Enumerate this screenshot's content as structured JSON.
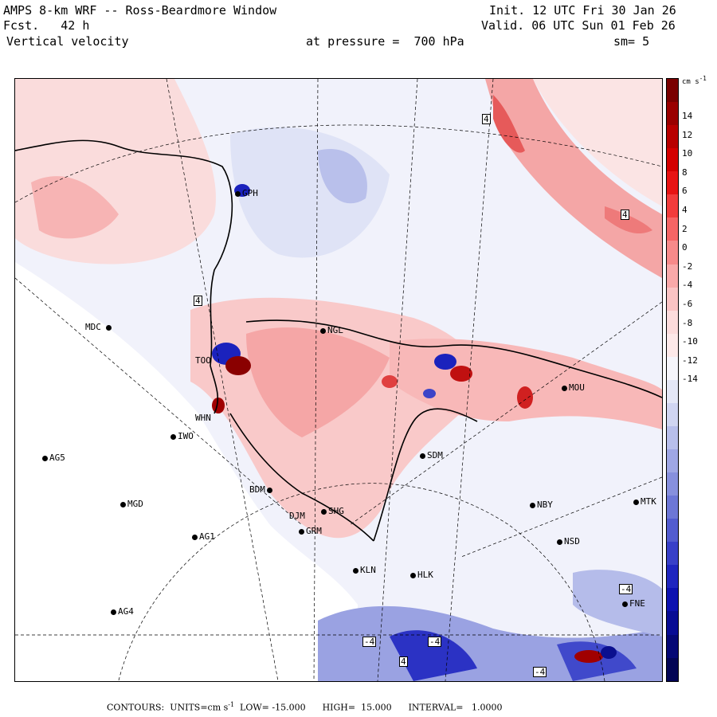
{
  "header": {
    "model": "AMPS 8-km WRF -- Ross-Beardmore Window",
    "forecast": "Fcst.   42 h",
    "variable": "Vertical velocity",
    "level": "at pressure =  700 hPa",
    "init": "Init. 12 UTC Fri 30 Jan 26",
    "valid": "Valid. 06 UTC Sun 01 Feb 26",
    "smoothing": "sm= 5"
  },
  "stations": [
    "GPH",
    "NGL",
    "MDC",
    "TOO",
    "WHN",
    "IWO",
    "AG5",
    "MOU",
    "SDM",
    "BDM",
    "SHG",
    "DJM",
    "GRM",
    "MGD",
    "AG1",
    "NBY",
    "MTK",
    "NSD",
    "KLN",
    "HLK",
    "AG4",
    "FNE"
  ],
  "contour_labels": [
    "4",
    "4",
    "4",
    "-4",
    "-4",
    "-4",
    "4",
    "-4"
  ],
  "colorbar": {
    "unit": "cm s",
    "unit_exp": "-1",
    "ticks": [
      "14",
      "12",
      "10",
      "8",
      "6",
      "4",
      "2",
      "0",
      "-2",
      "-4",
      "-6",
      "-8",
      "-10",
      "-12",
      "-14"
    ],
    "colors": [
      "#7a0000",
      "#9a0000",
      "#b80000",
      "#d40000",
      "#e81414",
      "#f23c3c",
      "#f56565",
      "#f78a8a",
      "#f9a9a9",
      "#fac4c4",
      "#fcdcdc",
      "#fde9e9",
      "#f5f5fb",
      "#e4e7f6",
      "#d0d5f1",
      "#b8bfeb",
      "#9fa7e4",
      "#8790dd",
      "#6d77d6",
      "#525ccf",
      "#3840c8",
      "#1f26bf",
      "#0d12b0",
      "#080c94",
      "#050875",
      "#030555"
    ]
  },
  "footer": {
    "contours": "CONTOURS:  UNITS=cm s",
    "unit_exp": "-1",
    "stats": "  LOW= -15.000      HIGH=  15.000      INTERVAL=   1.0000"
  }
}
